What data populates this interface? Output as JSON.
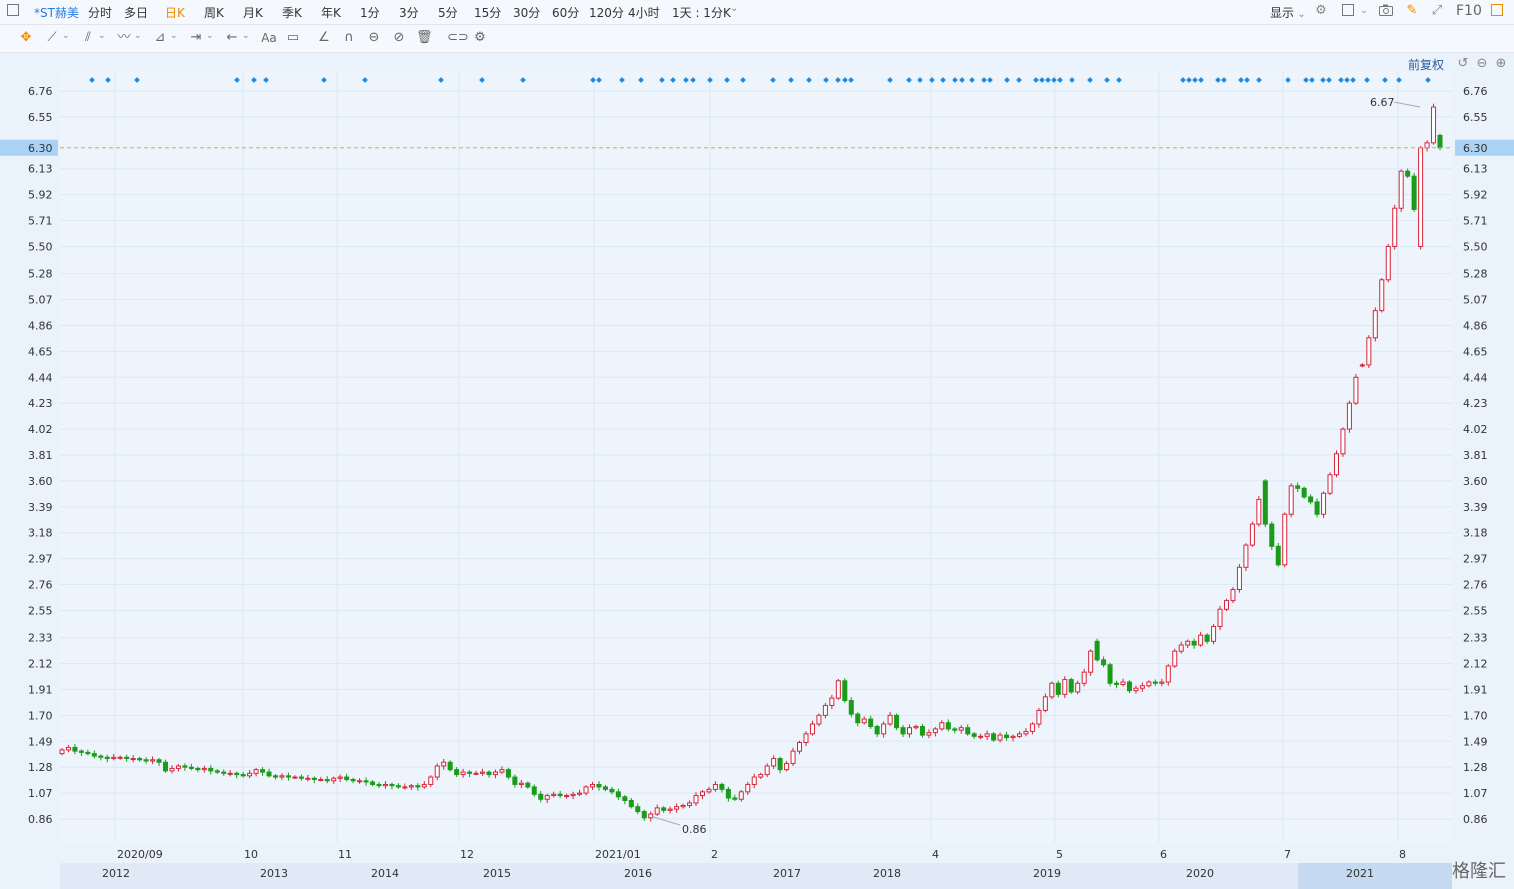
{
  "toolbar": {
    "checkbox_icon": "square-icon",
    "title": "*ST赫美",
    "periods": [
      "分时",
      "多日",
      "日K",
      "周K",
      "月K",
      "季K",
      "年K",
      "1分",
      "3分",
      "5分",
      "15分",
      "30分",
      "60分",
      "120分",
      "4小时",
      "1天 : 1分K"
    ],
    "active_period": "日K",
    "display_label": "显示",
    "f10_label": "F10"
  },
  "drawing_tools": [
    "move-icon",
    "line-icon",
    "channel-icon",
    "wave-icon",
    "measure-icon",
    "range-icon",
    "arrow-icon",
    "text-icon",
    "comment-icon",
    "ruler-icon",
    "magnet-icon",
    "lock-icon",
    "hide-icon",
    "delete-icon",
    "link-icon",
    "settings-icon"
  ],
  "adjust_label": "前复权",
  "text_tool_label": "Aa",
  "current_price": "6.30",
  "high_label": "6.67",
  "low_label": "0.86",
  "watermark": "格隆汇",
  "colors": {
    "up": "#d9253b",
    "down": "#1a9c1a",
    "accent": "#f08a00",
    "price_tag": "#a9d2f5",
    "dots": "#1e8be0",
    "line": "#e8a23a"
  },
  "chart_data": {
    "type": "candlestick",
    "y_ticks": [
      "6.76",
      "6.55",
      "6.34",
      "6.13",
      "5.92",
      "5.71",
      "5.50",
      "5.28",
      "5.07",
      "4.86",
      "4.65",
      "4.44",
      "4.23",
      "4.02",
      "3.81",
      "3.60",
      "3.39",
      "3.18",
      "2.97",
      "2.76",
      "2.55",
      "2.33",
      "2.12",
      "1.91",
      "1.70",
      "1.49",
      "1.28",
      "1.07",
      "0.86"
    ],
    "ylim": [
      0.73,
      6.87
    ],
    "x_labels_top": [
      "2020/09",
      "10",
      "11",
      "12",
      "2021/01",
      "2",
      "4",
      "5",
      "6",
      "7",
      "8"
    ],
    "x_labels_bottom": [
      "2012",
      "2013",
      "2014",
      "2015",
      "2016",
      "2017",
      "2018",
      "2019",
      "2020",
      "2021"
    ],
    "close": [
      1.42,
      1.44,
      1.41,
      1.4,
      1.39,
      1.37,
      1.36,
      1.35,
      1.36,
      1.36,
      1.35,
      1.35,
      1.34,
      1.33,
      1.34,
      1.32,
      1.25,
      1.27,
      1.29,
      1.28,
      1.27,
      1.26,
      1.27,
      1.25,
      1.24,
      1.23,
      1.23,
      1.22,
      1.21,
      1.23,
      1.26,
      1.24,
      1.21,
      1.2,
      1.21,
      1.2,
      1.2,
      1.19,
      1.19,
      1.18,
      1.18,
      1.17,
      1.19,
      1.2,
      1.18,
      1.17,
      1.17,
      1.16,
      1.14,
      1.13,
      1.14,
      1.13,
      1.12,
      1.12,
      1.13,
      1.12,
      1.14,
      1.2,
      1.29,
      1.32,
      1.26,
      1.22,
      1.24,
      1.23,
      1.23,
      1.24,
      1.22,
      1.24,
      1.26,
      1.2,
      1.14,
      1.15,
      1.12,
      1.06,
      1.02,
      1.05,
      1.06,
      1.05,
      1.05,
      1.06,
      1.07,
      1.12,
      1.14,
      1.12,
      1.1,
      1.08,
      1.04,
      1.01,
      0.96,
      0.92,
      0.87,
      0.9,
      0.95,
      0.93,
      0.94,
      0.96,
      0.97,
      0.99,
      1.05,
      1.08,
      1.1,
      1.14,
      1.1,
      1.03,
      1.02,
      1.08,
      1.14,
      1.2,
      1.22,
      1.29,
      1.35,
      1.26,
      1.31,
      1.41,
      1.48,
      1.55,
      1.63,
      1.7,
      1.78,
      1.84,
      1.98,
      1.82,
      1.71,
      1.64,
      1.67,
      1.61,
      1.55,
      1.63,
      1.7,
      1.6,
      1.55,
      1.6,
      1.61,
      1.54,
      1.56,
      1.59,
      1.64,
      1.59,
      1.58,
      1.6,
      1.55,
      1.53,
      1.53,
      1.55,
      1.5,
      1.54,
      1.52,
      1.53,
      1.55,
      1.57,
      1.63,
      1.74,
      1.85,
      1.96,
      1.87,
      1.99,
      1.89,
      1.96,
      2.05,
      2.22,
      2.15,
      2.11,
      1.96,
      1.95,
      1.97,
      1.9,
      1.92,
      1.94,
      1.97,
      1.96,
      1.97,
      2.1,
      2.22,
      2.27,
      2.3,
      2.27,
      2.35,
      2.3,
      2.42,
      2.56,
      2.63,
      2.72,
      2.9,
      3.08,
      3.25,
      3.45,
      3.25,
      3.07,
      2.92,
      3.33,
      3.56,
      3.54,
      3.47,
      3.43,
      3.33,
      3.5,
      3.65,
      3.82,
      4.02,
      4.23,
      4.44,
      4.54,
      4.76,
      4.98,
      5.23,
      5.5,
      5.81,
      6.11,
      6.07,
      5.8,
      6.3,
      6.34,
      6.63,
      6.3
    ],
    "open": [
      1.39,
      1.42,
      1.44,
      1.41,
      1.4,
      1.39,
      1.37,
      1.36,
      1.35,
      1.36,
      1.36,
      1.35,
      1.35,
      1.34,
      1.33,
      1.34,
      1.32,
      1.25,
      1.27,
      1.29,
      1.28,
      1.27,
      1.26,
      1.27,
      1.25,
      1.24,
      1.23,
      1.23,
      1.22,
      1.21,
      1.23,
      1.26,
      1.24,
      1.21,
      1.2,
      1.21,
      1.2,
      1.2,
      1.19,
      1.19,
      1.18,
      1.18,
      1.17,
      1.19,
      1.2,
      1.18,
      1.17,
      1.17,
      1.16,
      1.14,
      1.13,
      1.14,
      1.13,
      1.12,
      1.12,
      1.13,
      1.12,
      1.14,
      1.2,
      1.29,
      1.32,
      1.26,
      1.22,
      1.24,
      1.23,
      1.23,
      1.24,
      1.22,
      1.24,
      1.26,
      1.2,
      1.14,
      1.15,
      1.12,
      1.06,
      1.02,
      1.05,
      1.06,
      1.05,
      1.05,
      1.06,
      1.07,
      1.12,
      1.14,
      1.12,
      1.1,
      1.08,
      1.04,
      1.01,
      0.96,
      0.92,
      0.87,
      0.9,
      0.95,
      0.93,
      0.94,
      0.96,
      0.97,
      0.99,
      1.05,
      1.08,
      1.1,
      1.14,
      1.1,
      1.03,
      1.02,
      1.08,
      1.14,
      1.2,
      1.22,
      1.29,
      1.35,
      1.26,
      1.31,
      1.41,
      1.48,
      1.55,
      1.63,
      1.7,
      1.78,
      1.84,
      1.98,
      1.82,
      1.71,
      1.64,
      1.67,
      1.61,
      1.55,
      1.63,
      1.7,
      1.6,
      1.55,
      1.6,
      1.61,
      1.54,
      1.56,
      1.59,
      1.64,
      1.59,
      1.58,
      1.6,
      1.55,
      1.53,
      1.53,
      1.55,
      1.5,
      1.54,
      1.52,
      1.53,
      1.55,
      1.57,
      1.63,
      1.74,
      1.85,
      1.96,
      1.87,
      1.99,
      1.89,
      1.96,
      2.05,
      2.3,
      2.15,
      2.11,
      1.96,
      1.95,
      1.97,
      1.9,
      1.92,
      1.94,
      1.97,
      1.96,
      1.97,
      2.1,
      2.22,
      2.27,
      2.3,
      2.27,
      2.35,
      2.3,
      2.42,
      2.56,
      2.63,
      2.72,
      2.9,
      3.08,
      3.25,
      3.6,
      3.25,
      3.07,
      2.92,
      3.33,
      3.56,
      3.54,
      3.47,
      3.43,
      3.33,
      3.5,
      3.65,
      3.82,
      4.02,
      4.23,
      4.54,
      4.54,
      4.76,
      4.98,
      5.23,
      5.5,
      5.81,
      6.11,
      6.07,
      5.5,
      6.3,
      6.34,
      6.4
    ]
  }
}
